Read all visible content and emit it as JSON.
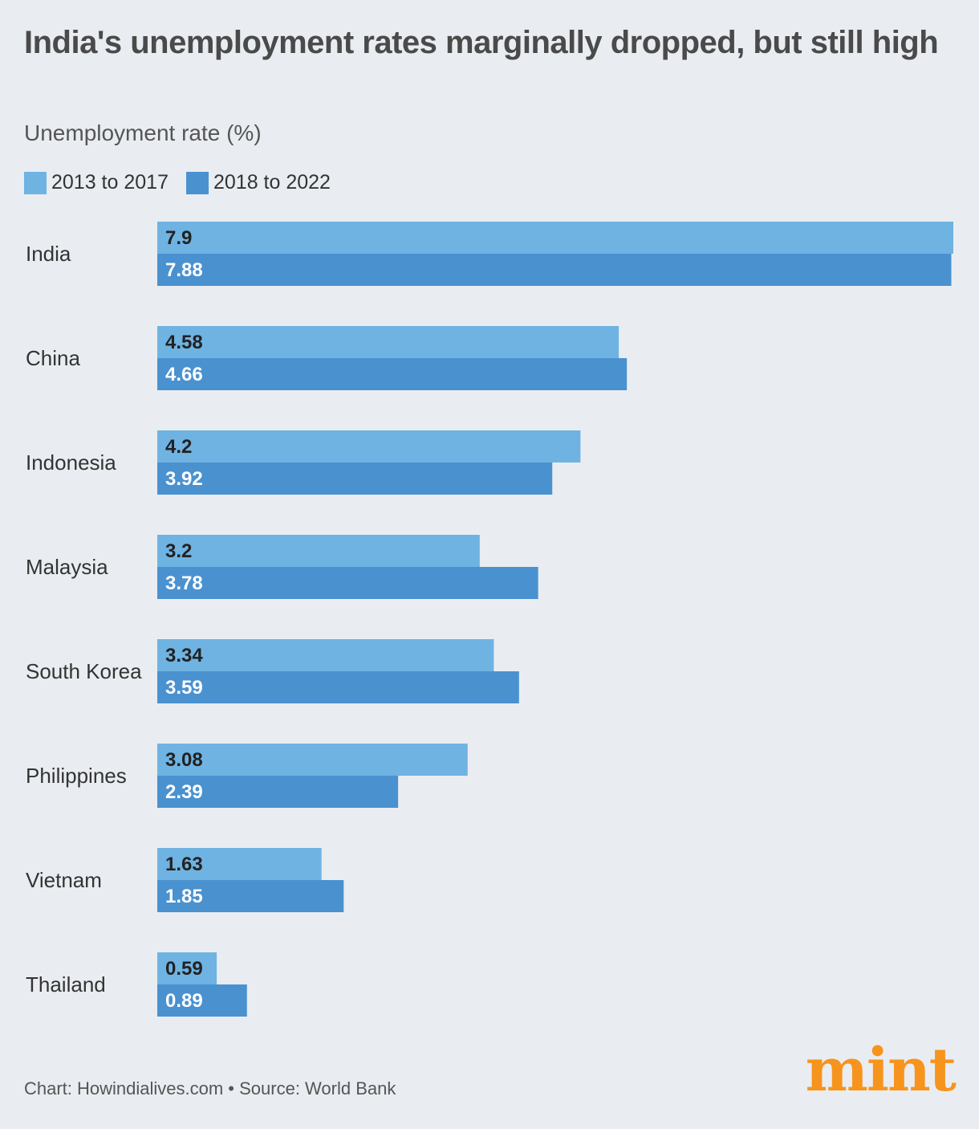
{
  "title": "India's unemployment rates marginally dropped, but still high",
  "subtitle": "Unemployment rate (%)",
  "legend": [
    {
      "label": "2013 to 2017",
      "color": "#6fb3e2"
    },
    {
      "label": "2018 to 2022",
      "color": "#4a91d0"
    }
  ],
  "footer": "Chart: Howindialives.com • Source: World Bank",
  "logo": "mint",
  "chart_data": {
    "type": "bar",
    "orientation": "horizontal",
    "categories": [
      "India",
      "China",
      "Indonesia",
      "Malaysia",
      "South Korea",
      "Philippines",
      "Vietnam",
      "Thailand"
    ],
    "series": [
      {
        "name": "2013 to 2017",
        "color": "#6fb3e2",
        "label_color": "#222222",
        "values": [
          7.9,
          4.58,
          4.2,
          3.2,
          3.34,
          3.08,
          1.63,
          0.59
        ],
        "labels": [
          "7.9",
          "4.58",
          "4.2",
          "3.2",
          "3.34",
          "3.08",
          "1.63",
          "0.59"
        ]
      },
      {
        "name": "2018 to 2022",
        "color": "#4a91d0",
        "label_color": "#ffffff",
        "values": [
          7.88,
          4.66,
          3.92,
          3.78,
          3.59,
          2.39,
          1.85,
          0.89
        ],
        "labels": [
          "7.88",
          "4.66",
          "3.92",
          "3.78",
          "3.59",
          "2.39",
          "1.85",
          "0.89"
        ]
      }
    ],
    "title": "India's unemployment rates marginally dropped, but still high",
    "ylabel": "Unemployment rate (%)",
    "grid": false,
    "legend_position": "top-left"
  }
}
